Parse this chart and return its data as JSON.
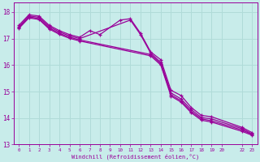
{
  "xlabel": "Windchill (Refroidissement éolien,°C)",
  "bg_color": "#c8ecea",
  "grid_color": "#b0dbd8",
  "line_color": "#990099",
  "xlim": [
    -0.5,
    23.5
  ],
  "ylim": [
    13.0,
    18.35
  ],
  "xticks": [
    0,
    1,
    2,
    3,
    4,
    5,
    6,
    7,
    8,
    9,
    10,
    11,
    12,
    13,
    14,
    15,
    16,
    17,
    18,
    19,
    20,
    22,
    23
  ],
  "xtick_labels": [
    "0",
    "1",
    "2",
    "3",
    "4",
    "5",
    "6",
    "7",
    "8",
    "9",
    "10",
    "11",
    "12",
    "13",
    "14",
    "15",
    "16",
    "17",
    "18",
    "19",
    "20",
    "22",
    "23"
  ],
  "yticks": [
    13,
    14,
    15,
    16,
    17,
    18
  ],
  "series": [
    {
      "x": [
        0,
        1,
        2,
        3,
        4,
        5,
        6,
        7,
        8,
        10,
        11,
        12,
        13,
        14,
        15,
        16,
        17,
        18,
        19,
        22,
        23
      ],
      "y": [
        17.5,
        17.9,
        17.85,
        17.5,
        17.3,
        17.15,
        17.05,
        17.3,
        17.15,
        17.7,
        17.75,
        17.2,
        16.5,
        16.2,
        15.05,
        14.85,
        14.4,
        14.1,
        14.05,
        13.65,
        13.45
      ]
    },
    {
      "x": [
        0,
        1,
        2,
        3,
        4,
        5,
        6,
        11,
        12,
        13,
        14,
        15,
        16,
        17,
        18,
        19,
        22,
        23
      ],
      "y": [
        17.45,
        17.85,
        17.8,
        17.45,
        17.25,
        17.1,
        17.0,
        17.7,
        17.15,
        16.45,
        16.1,
        14.95,
        14.72,
        14.32,
        14.02,
        13.97,
        13.6,
        13.4
      ]
    },
    {
      "x": [
        0,
        1,
        2,
        3,
        4,
        5,
        6,
        13,
        14,
        15,
        16,
        17,
        18,
        19,
        22,
        23
      ],
      "y": [
        17.42,
        17.82,
        17.75,
        17.4,
        17.2,
        17.05,
        16.95,
        16.4,
        16.05,
        14.88,
        14.65,
        14.25,
        13.97,
        13.9,
        13.55,
        13.38
      ]
    },
    {
      "x": [
        0,
        1,
        2,
        3,
        4,
        5,
        6,
        13,
        14,
        15,
        16,
        17,
        18,
        19,
        22,
        23
      ],
      "y": [
        17.38,
        17.78,
        17.72,
        17.36,
        17.16,
        17.01,
        16.91,
        16.35,
        16.0,
        14.83,
        14.6,
        14.2,
        13.92,
        13.85,
        13.5,
        13.35
      ]
    }
  ]
}
